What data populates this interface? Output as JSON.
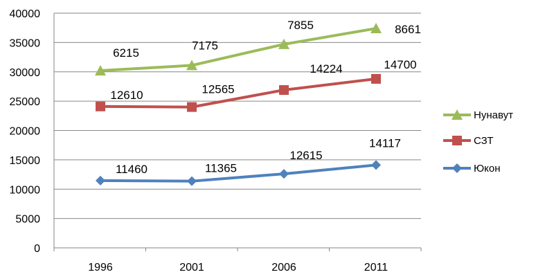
{
  "chart_data": {
    "type": "line",
    "title": "",
    "xlabel": "",
    "ylabel": "",
    "categories": [
      "1996",
      "2001",
      "2006",
      "2011"
    ],
    "ylim": [
      0,
      40000
    ],
    "yticks": [
      "0",
      "5000",
      "10000",
      "15000",
      "20000",
      "25000",
      "30000",
      "35000",
      "40000"
    ],
    "grid": "horizontal",
    "legend_position": "right",
    "series": [
      {
        "name": "Нунавут",
        "color": "#9bbb59",
        "marker": "triangle",
        "values": [
          30200,
          31100,
          34700,
          37400
        ],
        "labels": [
          "6215",
          "7175",
          "7855",
          "8661"
        ]
      },
      {
        "name": "СЗТ",
        "color": "#c0504d",
        "marker": "square",
        "values": [
          24100,
          24000,
          26900,
          28800
        ],
        "labels": [
          "12610",
          "12565",
          "14224",
          "14700"
        ]
      },
      {
        "name": "Юкон",
        "color": "#4f81bd",
        "marker": "diamond",
        "values": [
          11460,
          11365,
          12615,
          14117
        ],
        "labels": [
          "11460",
          "11365",
          "12615",
          "14117"
        ]
      }
    ]
  }
}
